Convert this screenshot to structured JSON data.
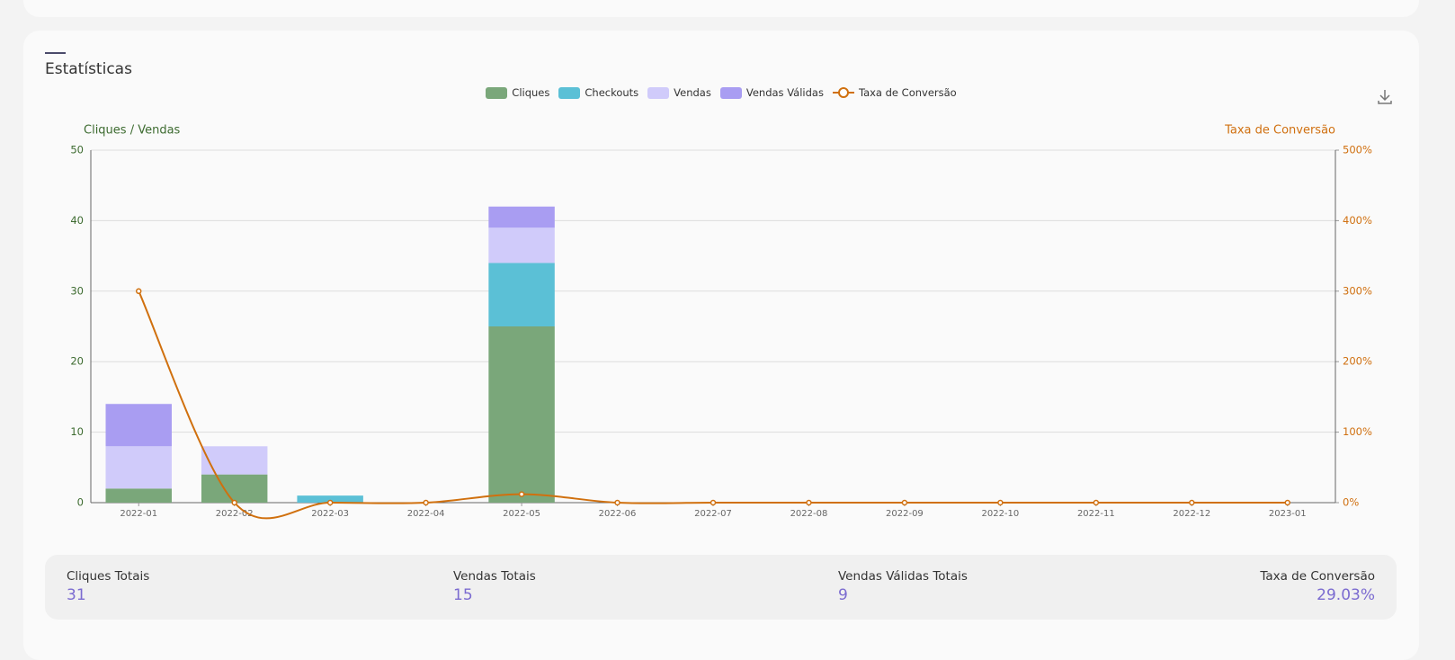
{
  "header": {
    "title": "Estatísticas"
  },
  "chart_data": {
    "type": "bar",
    "y_axis_label": "Cliques / Vendas",
    "y2_axis_label": "Taxa de Conversão",
    "categories": [
      "2022-01",
      "2022-02",
      "2022-03",
      "2022-04",
      "2022-05",
      "2022-06",
      "2022-07",
      "2022-08",
      "2022-09",
      "2022-10",
      "2022-11",
      "2022-12",
      "2023-01"
    ],
    "stacked": true,
    "series": [
      {
        "name": "Cliques",
        "color": "#7aa77a",
        "values": [
          2,
          4,
          0,
          0,
          25,
          0,
          0,
          0,
          0,
          0,
          0,
          0,
          0
        ]
      },
      {
        "name": "Checkouts",
        "color": "#5bc0d6",
        "values": [
          0,
          0,
          1,
          0,
          9,
          0,
          0,
          0,
          0,
          0,
          0,
          0,
          0
        ]
      },
      {
        "name": "Vendas",
        "color": "#d0cbfa",
        "values": [
          6,
          4,
          0,
          0,
          5,
          0,
          0,
          0,
          0,
          0,
          0,
          0,
          0
        ]
      },
      {
        "name": "Vendas Válidas",
        "color": "#a99df2",
        "values": [
          6,
          0,
          0,
          0,
          3,
          0,
          0,
          0,
          0,
          0,
          0,
          0,
          0
        ]
      },
      {
        "name": "Taxa de Conversão",
        "type": "line",
        "axis": "y2",
        "color": "#d0700e",
        "values": [
          300,
          0,
          0,
          0,
          12,
          0,
          0,
          0,
          0,
          0,
          0,
          0,
          0
        ]
      }
    ],
    "ylim": [
      0,
      50
    ],
    "yticks": [
      0,
      10,
      20,
      30,
      40,
      50
    ],
    "y2lim": [
      0,
      500
    ],
    "y2ticks": [
      {
        "value": 0,
        "label": "0%"
      },
      {
        "value": 100,
        "label": "100%"
      },
      {
        "value": 200,
        "label": "200%"
      },
      {
        "value": 300,
        "label": "300%"
      },
      {
        "value": 400,
        "label": "400%"
      },
      {
        "value": 500,
        "label": "500%"
      }
    ],
    "grid": true,
    "legend": "top"
  },
  "summary": [
    {
      "label": "Cliques Totais",
      "value": "31"
    },
    {
      "label": "Vendas Totais",
      "value": "15"
    },
    {
      "label": "Vendas Válidas Totais",
      "value": "9"
    },
    {
      "label": "Taxa de Conversão",
      "value": "29.03%"
    }
  ]
}
